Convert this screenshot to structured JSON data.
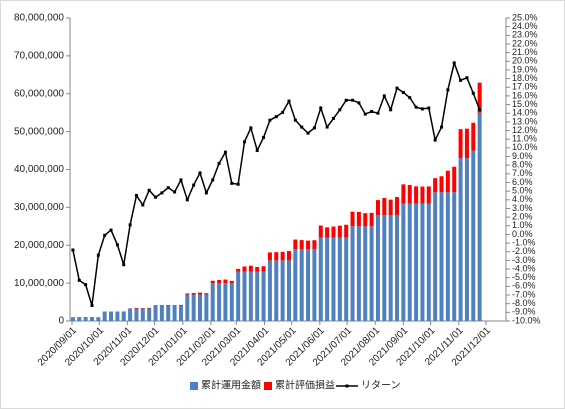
{
  "chart_data": {
    "type": "bar-line",
    "x": [
      "2020/09/02",
      "2020/09/09",
      "2020/09/16",
      "2020/09/23",
      "2020/09/30",
      "2020/10/07",
      "2020/10/14",
      "2020/10/21",
      "2020/10/28",
      "2020/11/04",
      "2020/11/11",
      "2020/11/18",
      "2020/11/25",
      "2020/12/02",
      "2020/12/09",
      "2020/12/16",
      "2020/12/23",
      "2020/12/30",
      "2021/01/06",
      "2021/01/13",
      "2021/01/20",
      "2021/01/27",
      "2021/02/03",
      "2021/02/10",
      "2021/02/17",
      "2021/02/24",
      "2021/03/03",
      "2021/03/10",
      "2021/03/17",
      "2021/03/24",
      "2021/03/31",
      "2021/04/07",
      "2021/04/14",
      "2021/04/21",
      "2021/04/28",
      "2021/05/05",
      "2021/05/12",
      "2021/05/19",
      "2021/05/26",
      "2021/06/02",
      "2021/06/09",
      "2021/06/16",
      "2021/06/23",
      "2021/06/30",
      "2021/07/07",
      "2021/07/14",
      "2021/07/21",
      "2021/07/28",
      "2021/08/04",
      "2021/08/11",
      "2021/08/18",
      "2021/08/25",
      "2021/09/01",
      "2021/09/08",
      "2021/09/15",
      "2021/09/22",
      "2021/09/29",
      "2021/10/06",
      "2021/10/13",
      "2021/10/20",
      "2021/10/27",
      "2021/11/03",
      "2021/11/10",
      "2021/11/17",
      "2021/11/24"
    ],
    "series": [
      {
        "name": "累計運用金額",
        "color": "#4f81bd",
        "values": [
          1000000,
          1000000,
          1000000,
          1000000,
          1000000,
          2500000,
          2500000,
          2500000,
          2500000,
          3300000,
          3300000,
          3300000,
          3300000,
          4000000,
          4000000,
          4000000,
          4000000,
          4000000,
          7000000,
          7000000,
          7000000,
          7000000,
          10000000,
          10000000,
          10000000,
          10000000,
          13000000,
          13000000,
          13000000,
          13000000,
          13000000,
          16000000,
          16000000,
          16000000,
          16000000,
          19000000,
          19000000,
          19000000,
          19000000,
          22000000,
          22000000,
          22000000,
          22000000,
          22000000,
          25000000,
          25000000,
          25000000,
          25000000,
          28000000,
          28000000,
          28000000,
          28000000,
          31000000,
          31000000,
          31000000,
          31000000,
          31000000,
          34000000,
          34000000,
          34000000,
          34000000,
          43000000,
          43000000,
          45000000,
          55000000
        ]
      },
      {
        "name": "累計評価損益",
        "color": "#ff0000",
        "values": [
          -18000,
          -53000,
          -58000,
          -82000,
          -24000,
          -3000,
          13000,
          -30000,
          -88000,
          36000,
          149000,
          112000,
          168000,
          172000,
          192000,
          216000,
          196000,
          252000,
          280000,
          399000,
          497000,
          336000,
          630000,
          820000,
          950000,
          590000,
          754000,
          1391000,
          1599000,
          1261000,
          1456000,
          2112000,
          2176000,
          2256000,
          2464000,
          2508000,
          2356000,
          2223000,
          2337000,
          3212000,
          2728000,
          2948000,
          3168000,
          3410000,
          3875000,
          3800000,
          3475000,
          3550000,
          3920000,
          4480000,
          4032000,
          4732000,
          5084000,
          4898000,
          4557000,
          4495000,
          4526000,
          3706000,
          4216000,
          5678000,
          6732000,
          7654000,
          7783000,
          7335000,
          7920000
        ]
      },
      {
        "name": "リターン",
        "color": "#000000",
        "axis": "y2",
        "values": [
          -1.8,
          -5.3,
          -5.8,
          -8.2,
          -2.4,
          -0.1,
          0.5,
          -1.2,
          -3.5,
          1.1,
          4.5,
          3.4,
          5.1,
          4.3,
          4.8,
          5.4,
          4.9,
          6.3,
          4.0,
          5.7,
          7.1,
          4.8,
          6.3,
          8.2,
          9.5,
          5.9,
          5.8,
          10.7,
          12.3,
          9.7,
          11.2,
          13.2,
          13.6,
          14.1,
          15.4,
          13.2,
          12.4,
          11.7,
          12.3,
          14.6,
          12.4,
          13.4,
          14.4,
          15.5,
          15.5,
          15.2,
          13.9,
          14.2,
          14.0,
          16.0,
          14.4,
          16.9,
          16.4,
          15.8,
          14.7,
          14.5,
          14.6,
          10.9,
          12.4,
          16.7,
          19.8,
          17.8,
          18.1,
          16.3,
          14.4
        ]
      }
    ],
    "xlim": [
      "2020/09/01",
      "2021/12/01"
    ],
    "xticks": [
      "2020/09/01",
      "2020/10/01",
      "2020/11/01",
      "2020/12/01",
      "2021/01/01",
      "2021/02/01",
      "2021/03/01",
      "2021/04/01",
      "2021/05/01",
      "2021/06/01",
      "2021/07/01",
      "2021/08/01",
      "2021/09/01",
      "2021/10/01",
      "2021/11/01",
      "2021/12/01"
    ],
    "ylim": [
      0,
      80000000
    ],
    "yticks": [
      {
        "value": 0,
        "label": "0"
      },
      {
        "value": 10000000,
        "label": "10,000,000"
      },
      {
        "value": 20000000,
        "label": "20,000,000"
      },
      {
        "value": 30000000,
        "label": "30,000,000"
      },
      {
        "value": 40000000,
        "label": "40,000,000"
      },
      {
        "value": 50000000,
        "label": "50,000,000"
      },
      {
        "value": 60000000,
        "label": "60,000,000"
      },
      {
        "value": 70000000,
        "label": "70,000,000"
      },
      {
        "value": 80000000,
        "label": "80,000,000"
      }
    ],
    "y2lim": [
      -10,
      25
    ],
    "y2ticks": [
      {
        "value": -10,
        "label": "-10.0%"
      },
      {
        "value": -9,
        "label": "-9.0%"
      },
      {
        "value": -8,
        "label": "-8.0%"
      },
      {
        "value": -7,
        "label": "-7.0%"
      },
      {
        "value": -6,
        "label": "-6.0%"
      },
      {
        "value": -5,
        "label": "-5.0%"
      },
      {
        "value": -4,
        "label": "-4.0%"
      },
      {
        "value": -3,
        "label": "-3.0%"
      },
      {
        "value": -2,
        "label": "-2.0%"
      },
      {
        "value": -1,
        "label": "-1.0%"
      },
      {
        "value": 0,
        "label": "0.0%"
      },
      {
        "value": 1,
        "label": "1.0%"
      },
      {
        "value": 2,
        "label": "2.0%"
      },
      {
        "value": 3,
        "label": "3.0%"
      },
      {
        "value": 4,
        "label": "4.0%"
      },
      {
        "value": 5,
        "label": "5.0%"
      },
      {
        "value": 6,
        "label": "6.0%"
      },
      {
        "value": 7,
        "label": "7.0%"
      },
      {
        "value": 8,
        "label": "8.0%"
      },
      {
        "value": 9,
        "label": "9.0%"
      },
      {
        "value": 10,
        "label": "10.0%"
      },
      {
        "value": 11,
        "label": "11.0%"
      },
      {
        "value": 12,
        "label": "12.0%"
      },
      {
        "value": 13,
        "label": "13.0%"
      },
      {
        "value": 14,
        "label": "14.0%"
      },
      {
        "value": 15,
        "label": "15.0%"
      },
      {
        "value": 16,
        "label": "16.0%"
      },
      {
        "value": 17,
        "label": "17.0%"
      },
      {
        "value": 18,
        "label": "18.0%"
      },
      {
        "value": 19,
        "label": "19.0%"
      },
      {
        "value": 20,
        "label": "20.0%"
      },
      {
        "value": 21,
        "label": "21.0%"
      },
      {
        "value": 22,
        "label": "22.0%"
      },
      {
        "value": 23,
        "label": "23.0%"
      },
      {
        "value": 24,
        "label": "24.0%"
      },
      {
        "value": 25,
        "label": "25.0%"
      }
    ],
    "legend": "bottom"
  }
}
